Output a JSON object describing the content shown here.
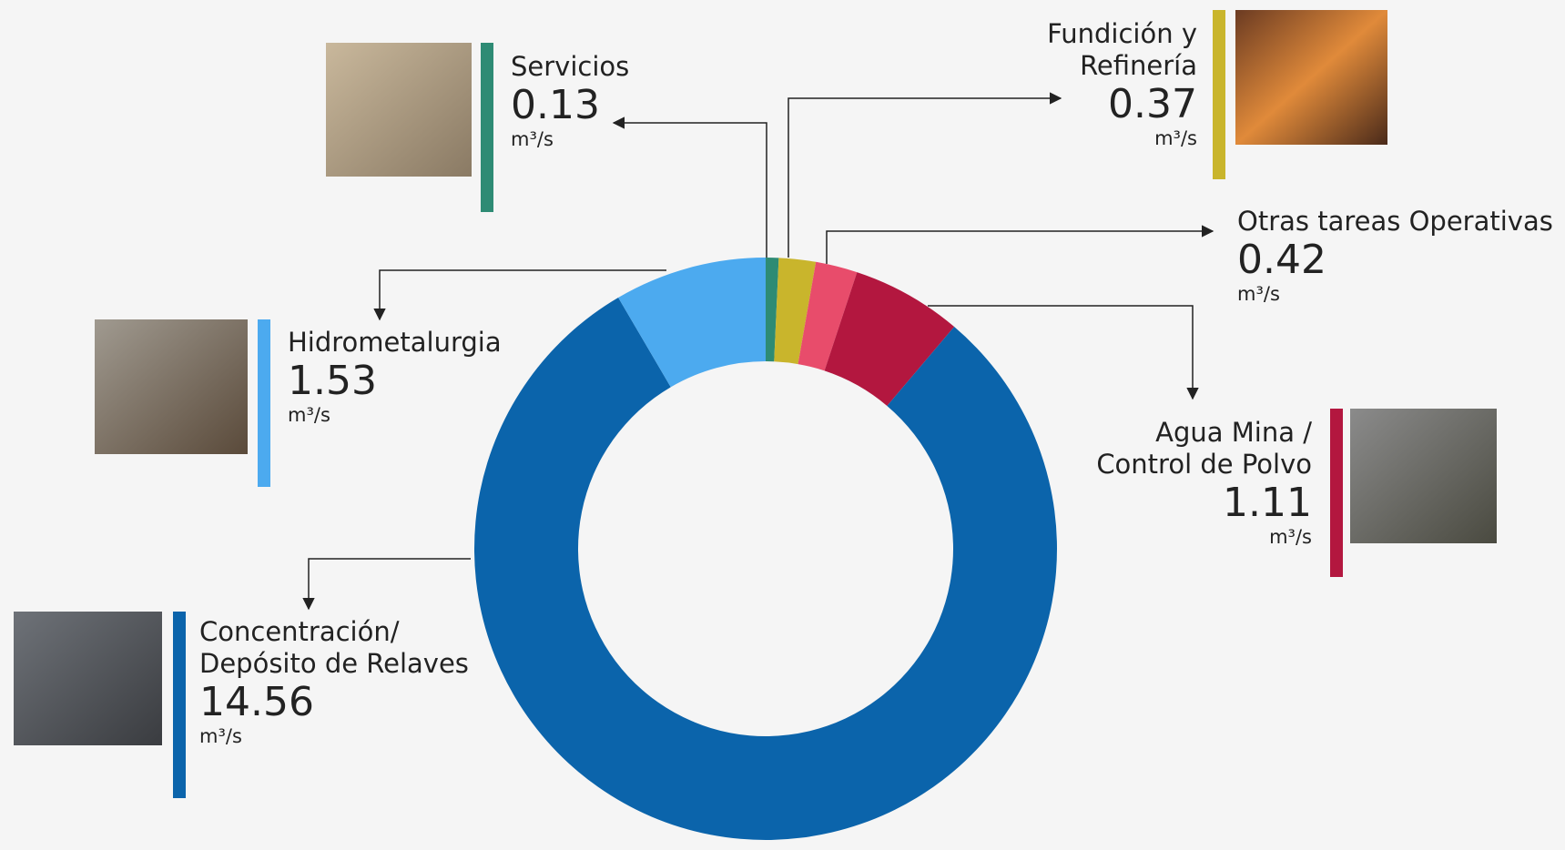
{
  "chart_data": {
    "type": "donut",
    "categories": [
      "Servicios",
      "Fundición y Refinería",
      "Otras tareas Operativas",
      "Agua Mina / Control de Polvo",
      "Concentración/ Depósito de Relaves",
      "Hidrometalurgia"
    ],
    "values": [
      0.13,
      0.37,
      0.42,
      1.11,
      14.56,
      1.53
    ],
    "colors": [
      "#2e8b74",
      "#c9b52c",
      "#e84c6b",
      "#b3173f",
      "#0b64ab",
      "#4caaef"
    ],
    "unit": "m³/s"
  }
}
